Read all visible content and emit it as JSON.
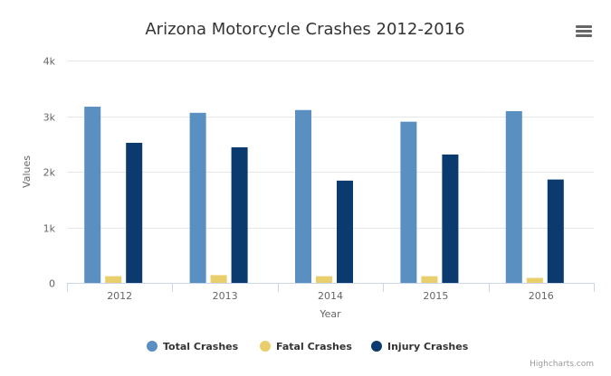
{
  "chart_data": {
    "type": "bar",
    "title": "Arizona Motorcycle Crashes 2012-2016",
    "xlabel": "Year",
    "ylabel": "Values",
    "categories": [
      "2012",
      "2013",
      "2014",
      "2015",
      "2016"
    ],
    "ylim": [
      0,
      4000
    ],
    "yticks": [
      {
        "value": 0,
        "label": "0"
      },
      {
        "value": 1000,
        "label": "1k"
      },
      {
        "value": 2000,
        "label": "2k"
      },
      {
        "value": 3000,
        "label": "3k"
      },
      {
        "value": 4000,
        "label": "4k"
      }
    ],
    "grid": true,
    "legend_position": "bottom-center",
    "series": [
      {
        "name": "Total Crashes",
        "color": "#5a8fc2",
        "values": [
          3170,
          3060,
          3110,
          2900,
          3090
        ]
      },
      {
        "name": "Fatal Crashes",
        "color": "#e9cf6b",
        "values": [
          120,
          140,
          120,
          120,
          90
        ]
      },
      {
        "name": "Injury Crashes",
        "color": "#0b3a6e",
        "values": [
          2520,
          2440,
          1840,
          2310,
          1860
        ]
      }
    ]
  },
  "ui": {
    "menu_icon": "hamburger-menu-icon",
    "credits": "Highcharts.com"
  }
}
